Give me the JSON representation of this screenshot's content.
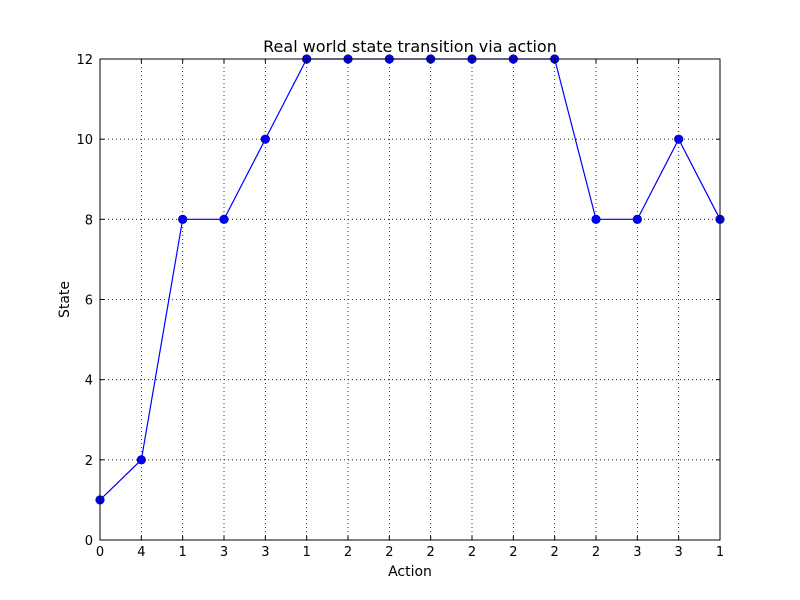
{
  "chart_data": {
    "type": "line",
    "title": "Real world state transition via action",
    "xlabel": "Action",
    "ylabel": "State",
    "x": [
      0,
      1,
      2,
      3,
      4,
      5,
      6,
      7,
      8,
      9,
      10,
      11,
      12,
      13,
      14,
      15
    ],
    "xtick_labels": [
      "0",
      "4",
      "1",
      "3",
      "3",
      "1",
      "2",
      "2",
      "2",
      "2",
      "2",
      "2",
      "2",
      "3",
      "3",
      "1"
    ],
    "series": [
      {
        "values": [
          1,
          2,
          8,
          8,
          10,
          12,
          12,
          12,
          12,
          12,
          12,
          12,
          8,
          8,
          10,
          8
        ],
        "color": "#0000ff",
        "marker": "circle"
      }
    ],
    "xlim": [
      0,
      15
    ],
    "ylim": [
      0,
      12
    ],
    "yticks": [
      0,
      2,
      4,
      6,
      8,
      10,
      12
    ],
    "grid": true,
    "grid_style": "dotted"
  }
}
